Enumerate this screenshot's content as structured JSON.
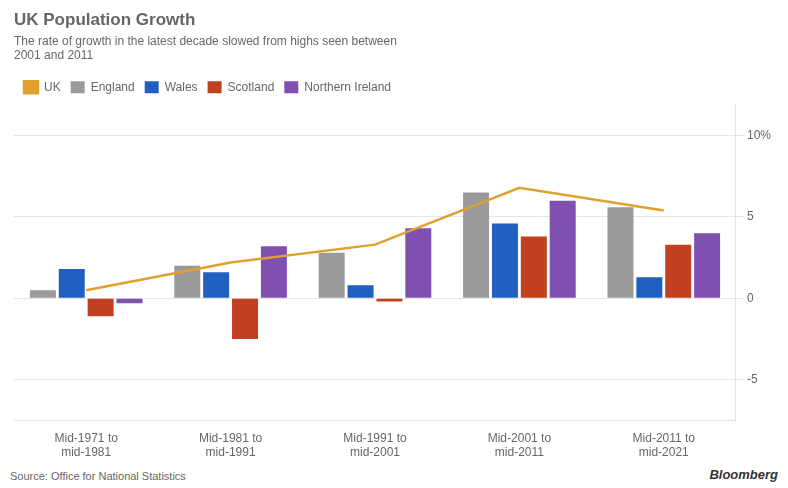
{
  "chart_data": {
    "type": "bar",
    "title": "UK Population Growth",
    "subtitle": "The rate of growth in the latest decade slowed from highs seen between\n2001 and 2011",
    "annotations": [
      "Source: Office for National Statistics",
      "Bloomberg"
    ],
    "categories": [
      "Mid-1971 to\nmid-1981",
      "Mid-1981 to\nmid-1991",
      "Mid-1991 to\nmid-2001",
      "Mid-2001 to\nmid-2011",
      "Mid-2011 to\nmid-2021"
    ],
    "series": [
      {
        "name": "England",
        "type": "bar",
        "color": "#9a9a9a",
        "values": [
          0.5,
          2.0,
          2.8,
          6.5,
          5.6
        ]
      },
      {
        "name": "Wales",
        "type": "bar",
        "color": "#2060c0",
        "values": [
          1.8,
          1.6,
          0.8,
          4.6,
          1.3
        ]
      },
      {
        "name": "Scotland",
        "type": "bar",
        "color": "#c04020",
        "values": [
          -1.1,
          -2.5,
          -0.2,
          3.8,
          3.3
        ]
      },
      {
        "name": "Northern Ireland",
        "type": "bar",
        "color": "#8050b0",
        "values": [
          -0.3,
          3.2,
          4.3,
          6.0,
          4.0
        ]
      },
      {
        "name": "UK",
        "type": "line",
        "marker": "none",
        "color": "#e0a030",
        "values": [
          0.5,
          2.2,
          3.3,
          6.8,
          5.4
        ]
      }
    ],
    "ylim": [
      -7.5,
      12
    ],
    "yticks": [
      -5,
      0,
      5,
      {
        "value": 10,
        "label": "10%"
      }
    ],
    "grid": true,
    "legend": "top"
  }
}
